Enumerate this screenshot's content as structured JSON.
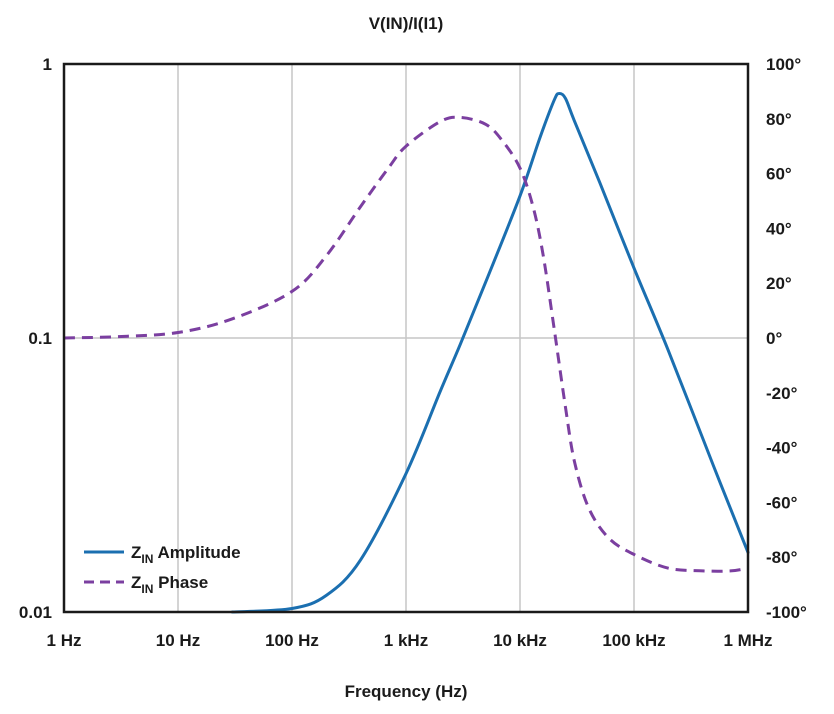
{
  "chart_data": {
    "type": "line",
    "title": "V(IN)/I(I1)",
    "xlabel": "Frequency (Hz)",
    "x_scale": "log",
    "x_ticks": [
      {
        "value": 1,
        "label": "1 Hz"
      },
      {
        "value": 10,
        "label": "10 Hz"
      },
      {
        "value": 100,
        "label": "100 Hz"
      },
      {
        "value": 1000,
        "label": "1 kHz"
      },
      {
        "value": 10000,
        "label": "10 kHz"
      },
      {
        "value": 100000,
        "label": "100 kHz"
      },
      {
        "value": 1000000,
        "label": "1 MHz"
      }
    ],
    "xlim": [
      1,
      1000000
    ],
    "y_left": {
      "scale": "log",
      "lim": [
        0.01,
        1
      ],
      "ticks": [
        {
          "value": 0.01,
          "label": "0.01"
        },
        {
          "value": 0.1,
          "label": "0.1"
        },
        {
          "value": 1,
          "label": "1"
        }
      ]
    },
    "y_right": {
      "scale": "linear",
      "lim": [
        -100,
        100
      ],
      "ticks": [
        {
          "value": 100,
          "label": "100°"
        },
        {
          "value": 80,
          "label": "80°"
        },
        {
          "value": 60,
          "label": "60°"
        },
        {
          "value": 40,
          "label": "40°"
        },
        {
          "value": 20,
          "label": "20°"
        },
        {
          "value": 0,
          "label": "0°"
        },
        {
          "value": -20,
          "label": "-20°"
        },
        {
          "value": -40,
          "label": "-40°"
        },
        {
          "value": -60,
          "label": "-60°"
        },
        {
          "value": -80,
          "label": "-80°"
        },
        {
          "value": -100,
          "label": "-100°"
        }
      ]
    },
    "grid": true,
    "legend_position": "bottom-left",
    "series": [
      {
        "name": "Z_IN Amplitude",
        "legend_main": "Z",
        "legend_sub": "IN",
        "legend_rest": " Amplitude",
        "axis": "left",
        "style": "solid",
        "color": "#1b6fb0",
        "x": [
          30,
          100,
          200,
          400,
          1000,
          2000,
          3000,
          5000,
          10000,
          15000,
          20000,
          22000,
          25000,
          30000,
          50000,
          100000,
          200000,
          500000,
          1000000
        ],
        "y": [
          0.01,
          0.0103,
          0.0115,
          0.0155,
          0.032,
          0.064,
          0.095,
          0.16,
          0.33,
          0.54,
          0.74,
          0.78,
          0.75,
          0.62,
          0.37,
          0.18,
          0.09,
          0.034,
          0.0165
        ]
      },
      {
        "name": "Z_IN Phase",
        "legend_main": "Z",
        "legend_sub": "IN",
        "legend_rest": " Phase",
        "axis": "right",
        "style": "dashed",
        "color": "#7b3fa0",
        "x": [
          1,
          3,
          10,
          30,
          100,
          200,
          400,
          700,
          1000,
          2000,
          3000,
          5000,
          7000,
          10000,
          13000,
          16000,
          20000,
          25000,
          30000,
          40000,
          60000,
          100000,
          200000,
          400000,
          700000,
          1000000
        ],
        "y": [
          0,
          0.5,
          2,
          7,
          17,
          30,
          48,
          62,
          70,
          79,
          80.5,
          78,
          72,
          62,
          48,
          30,
          3,
          -25,
          -45,
          -62,
          -73,
          -79,
          -84,
          -85,
          -85,
          -84
        ]
      }
    ]
  }
}
